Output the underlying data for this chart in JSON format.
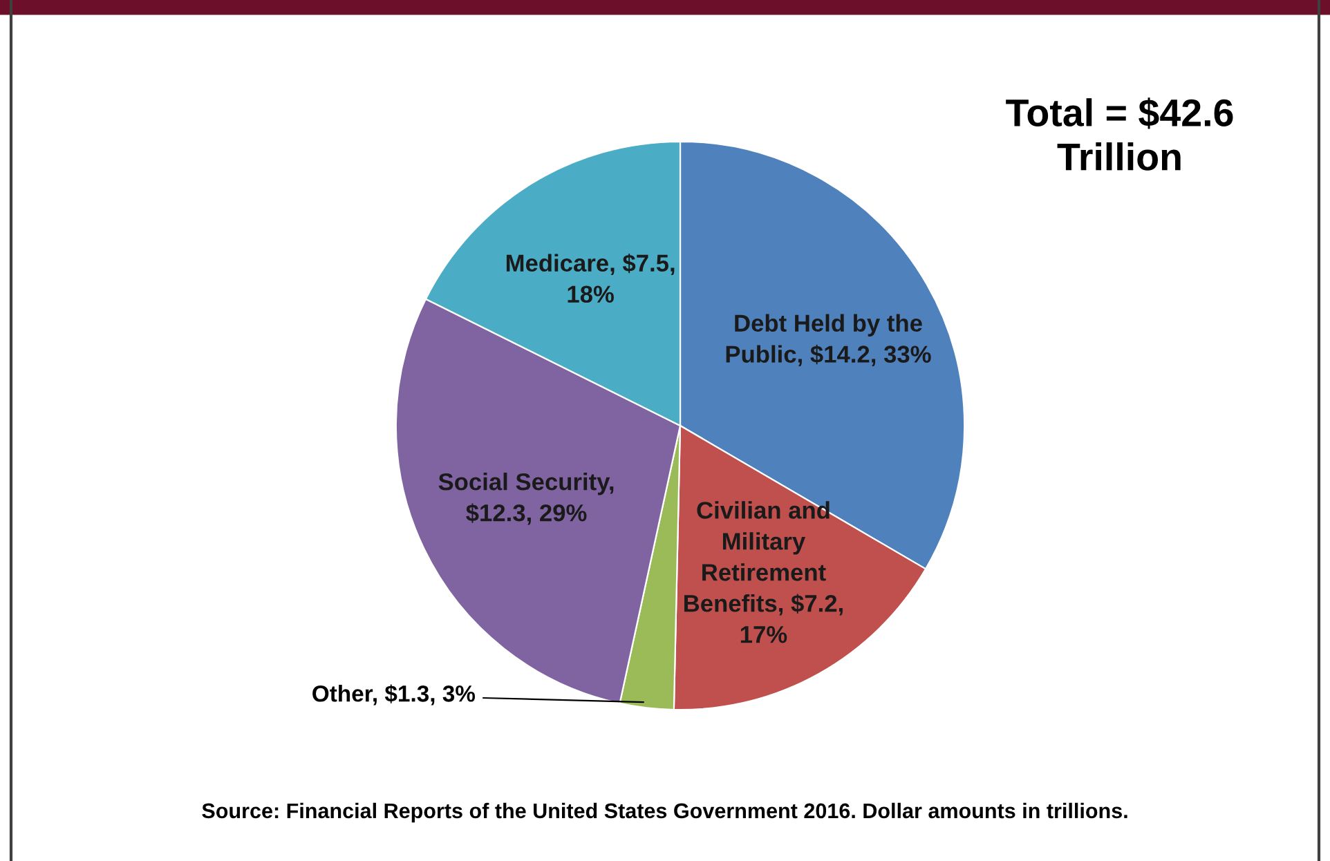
{
  "chart_data": {
    "type": "pie",
    "categories": [
      "Debt Held by the Public",
      "Civilian and Military Retirement Benefits",
      "Other",
      "Social Security",
      "Medicare"
    ],
    "values": [
      14.2,
      7.2,
      1.3,
      12.3,
      7.5
    ],
    "value_labels": [
      ", $14.2, 33%",
      ", $7.2, 17%",
      ", $1.3, 3%",
      ", $12.3, 29%",
      ", $7.5, 18%"
    ],
    "colors": [
      "#4f81bd",
      "#c0504d",
      "#9bbb59",
      "#8064a2",
      "#4bacc6"
    ],
    "annotations": [
      "Total = $42.6 Trillion",
      "Source: Financial Reports of the United States Government 2016. Dollar amounts in trillions."
    ]
  }
}
